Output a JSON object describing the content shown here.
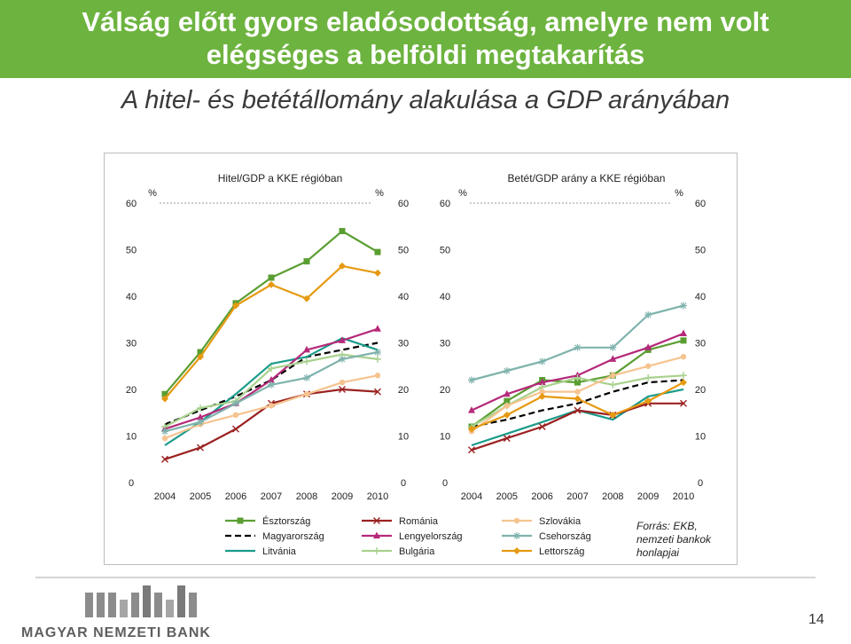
{
  "slide": {
    "title_line1": "Válság előtt gyors eladósodottság, amelyre nem volt",
    "title_line2": "elégséges a belföldi megtakarítás",
    "subtitle": "A hitel- és betétállomány alakulása a GDP arányában",
    "source_line1": "Forrás: EKB,",
    "source_line2": "nemzeti bankok",
    "source_line3": "honlapjai",
    "bank_name": "MAGYAR NEMZETI BANK",
    "page_number": "14"
  },
  "colors": {
    "title_bar": "#6db33f",
    "Észtország": "#5a9e32",
    "Magyarország": "#000000",
    "Litvánia": "#1a9b8a",
    "Románia": "#9b2121",
    "Lengyelország": "#b5297a",
    "Bulgária": "#a9d18e",
    "Szlovákia": "#f5c48f",
    "Csehország": "#7fb3ad",
    "Lettország": "#e69a12"
  },
  "legend": [
    {
      "name": "Észtország",
      "style": "square-marker"
    },
    {
      "name": "Magyarország",
      "style": "dashed"
    },
    {
      "name": "Litvánia",
      "style": "plain"
    },
    {
      "name": "Románia",
      "style": "x-marker"
    },
    {
      "name": "Lengyelország",
      "style": "triangle-marker"
    },
    {
      "name": "Bulgária",
      "style": "plus-marker"
    },
    {
      "name": "Szlovákia",
      "style": "circle-marker"
    },
    {
      "name": "Csehország",
      "style": "star-marker"
    },
    {
      "name": "Lettország",
      "style": "diamond-marker"
    }
  ],
  "chart_data": [
    {
      "type": "line",
      "title": "Hitel/GDP a KKE régióban",
      "left_unit": "%",
      "right_unit": "%",
      "categories": [
        "2004",
        "2005",
        "2006",
        "2007",
        "2008",
        "2009",
        "2010"
      ],
      "ylim": [
        0,
        60
      ],
      "yticks": [
        "0",
        "10",
        "20",
        "30",
        "40",
        "50",
        "60"
      ],
      "grid": false,
      "series": [
        {
          "name": "Észtország",
          "values": [
            19,
            28,
            38.5,
            44,
            47.5,
            54,
            49.5
          ]
        },
        {
          "name": "Magyarország",
          "values": [
            12.5,
            15.5,
            18.5,
            22,
            27,
            28.5,
            30
          ]
        },
        {
          "name": "Litvánia",
          "values": [
            8,
            13,
            19,
            25.5,
            27,
            31,
            28.5
          ]
        },
        {
          "name": "Románia",
          "values": [
            5,
            7.5,
            11.5,
            17,
            19,
            20,
            19.5
          ]
        },
        {
          "name": "Lengyelország",
          "values": [
            11.5,
            14,
            17,
            22,
            28.5,
            30.5,
            33
          ]
        },
        {
          "name": "Bulgária",
          "values": [
            12,
            16,
            17.5,
            24.5,
            26,
            27.5,
            26.5
          ]
        },
        {
          "name": "Szlovákia",
          "values": [
            9.5,
            12.5,
            14.5,
            16.5,
            19,
            21.5,
            23
          ]
        },
        {
          "name": "Csehország",
          "values": [
            11,
            13,
            17,
            21,
            22.5,
            26.5,
            28
          ]
        },
        {
          "name": "Lettország",
          "values": [
            18,
            27,
            38,
            42.5,
            39.5,
            46.5,
            45
          ]
        }
      ]
    },
    {
      "type": "line",
      "title": "Betét/GDP arány a KKE régióban",
      "left_unit": "%",
      "right_unit": "%",
      "categories": [
        "2004",
        "2005",
        "2006",
        "2007",
        "2008",
        "2009",
        "2010"
      ],
      "ylim": [
        0,
        60
      ],
      "yticks": [
        "0",
        "10",
        "20",
        "30",
        "40",
        "50",
        "60"
      ],
      "grid": false,
      "series": [
        {
          "name": "Észtország",
          "values": [
            12,
            17.5,
            22,
            21.5,
            23,
            28.5,
            30.5
          ]
        },
        {
          "name": "Magyarország",
          "values": [
            12,
            13.5,
            15.5,
            17,
            19.5,
            21.5,
            22
          ]
        },
        {
          "name": "Litvánia",
          "values": [
            8,
            10.5,
            13,
            15.5,
            13.5,
            18.5,
            20
          ]
        },
        {
          "name": "Románia",
          "values": [
            7,
            9.5,
            12,
            15.5,
            14.5,
            17,
            17
          ]
        },
        {
          "name": "Lengyelország",
          "values": [
            15.5,
            19,
            21.5,
            23,
            26.5,
            29,
            32
          ]
        },
        {
          "name": "Bulgária",
          "values": [
            12,
            16.5,
            20.5,
            22.5,
            21,
            22.5,
            23
          ]
        },
        {
          "name": "Szlovákia",
          "values": [
            11,
            16.5,
            19.5,
            19.5,
            23,
            25,
            27
          ]
        },
        {
          "name": "Csehország",
          "values": [
            22,
            24,
            26,
            29,
            29,
            36,
            38
          ]
        },
        {
          "name": "Lettország",
          "values": [
            11.5,
            14.5,
            18.5,
            18,
            14.5,
            17.5,
            21.5
          ]
        }
      ]
    }
  ]
}
